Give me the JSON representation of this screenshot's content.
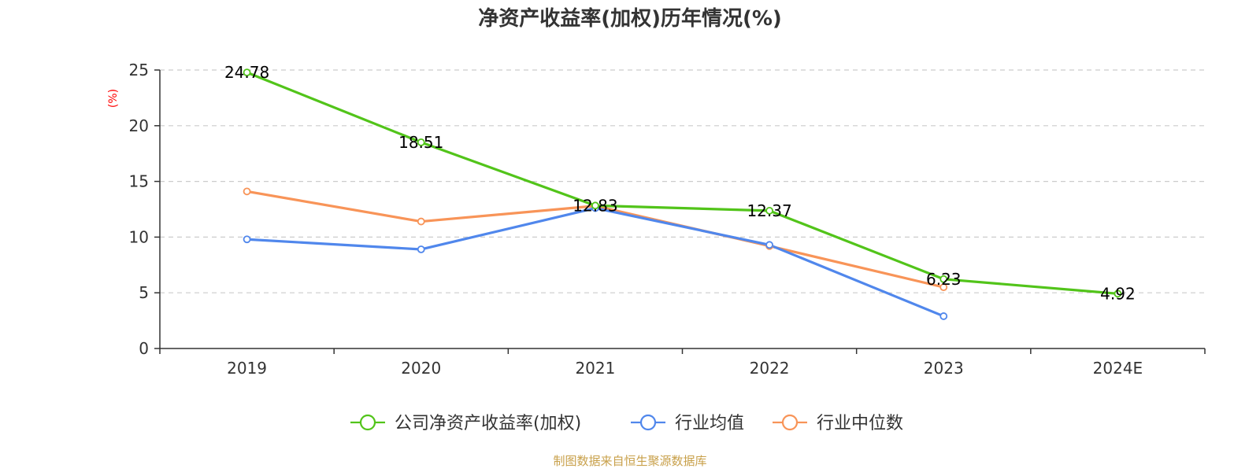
{
  "chart_data": {
    "type": "line",
    "title": "净资产收益率(加权)历年情况(%)",
    "ylabel": "(%)",
    "categories": [
      "2019",
      "2020",
      "2021",
      "2022",
      "2023",
      "2024E"
    ],
    "ylim": [
      0,
      25
    ],
    "yticks": [
      "0",
      "5",
      "10",
      "15",
      "20",
      "25"
    ],
    "grid": true,
    "legend_position": "bottom",
    "series": [
      {
        "name": "公司净资产收益率(加权)",
        "color": "#52c41a",
        "values": [
          24.78,
          18.51,
          12.83,
          12.37,
          6.23,
          4.92
        ],
        "labels": [
          "24.78",
          "18.51",
          "12.83",
          "12.37",
          "6.23",
          "4.92"
        ]
      },
      {
        "name": "行业均值",
        "color": "#5087ec",
        "values": [
          9.8,
          8.9,
          12.6,
          9.3,
          2.9,
          null
        ],
        "labels": []
      },
      {
        "name": "行业中位数",
        "color": "#f89458",
        "values": [
          14.1,
          11.4,
          12.8,
          9.2,
          5.5,
          null
        ],
        "labels": []
      }
    ]
  },
  "source": {
    "text": "制图数据来自恒生聚源数据库",
    "color": "#c8a04a"
  }
}
